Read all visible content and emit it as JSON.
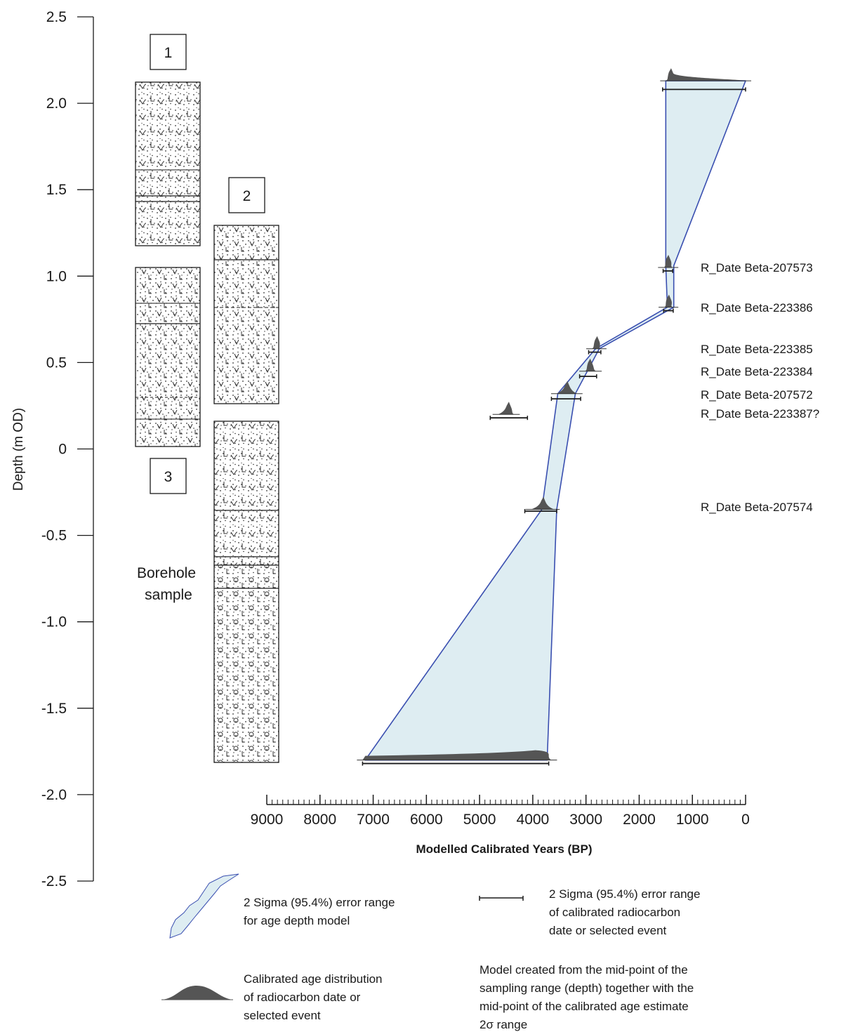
{
  "chart_data": {
    "type": "line",
    "ylabel": "Depth (m OD)",
    "xlabel": "Modelled Calibrated Years (BP)",
    "ylim": [
      -2.5,
      2.5
    ],
    "xlim": [
      9000,
      0
    ],
    "y_ticks": [
      "2.5",
      "2.0",
      "1.5",
      "1.0",
      "0.5",
      "0",
      "-0.5",
      "-1.0",
      "-1.5",
      "-2.0",
      "-2.5"
    ],
    "x_ticks": [
      "9000",
      "8000",
      "7000",
      "6000",
      "5000",
      "4000",
      "3000",
      "2000",
      "1000",
      "0"
    ],
    "dates": [
      {
        "label": "R_Date Beta-207573",
        "depth": 1.05,
        "age": 1450
      },
      {
        "label": "R_Date Beta-223386",
        "depth": 0.82,
        "age": 1430
      },
      {
        "label": "R_Date Beta-223385",
        "depth": 0.58,
        "age": 2800
      },
      {
        "label": "R_Date Beta-223384",
        "depth": 0.45,
        "age": 2900
      },
      {
        "label": "R_Date Beta-207572",
        "depth": 0.32,
        "age": 3350
      },
      {
        "label": "R_Date Beta-223387?",
        "depth": 0.2,
        "age": 4500
      },
      {
        "label": "R_Date Beta-207574",
        "depth": -0.35,
        "age": 3800
      }
    ],
    "model_envelope": {
      "left": [
        {
          "age": 1500,
          "depth": 2.13
        },
        {
          "age": 1500,
          "depth": 1.06
        },
        {
          "age": 1470,
          "depth": 0.82
        },
        {
          "age": 2820,
          "depth": 0.58
        },
        {
          "age": 3530,
          "depth": 0.32
        },
        {
          "age": 3830,
          "depth": -0.35
        },
        {
          "age": 7150,
          "depth": -1.8
        }
      ],
      "right": [
        {
          "age": 0,
          "depth": 2.13
        },
        {
          "age": 1350,
          "depth": 1.06
        },
        {
          "age": 1350,
          "depth": 0.82
        },
        {
          "age": 2750,
          "depth": 0.58
        },
        {
          "age": 3200,
          "depth": 0.32
        },
        {
          "age": 3550,
          "depth": -0.35
        },
        {
          "age": 3730,
          "depth": -1.8
        }
      ]
    },
    "distributions": [
      {
        "depth": 2.13,
        "from": 1500,
        "to": 0,
        "peak": 1400
      },
      {
        "depth": 1.05,
        "from": 1540,
        "to": 1370,
        "peak": 1450
      },
      {
        "depth": 0.82,
        "from": 1530,
        "to": 1370,
        "peak": 1440
      },
      {
        "depth": 0.58,
        "from": 2890,
        "to": 2720,
        "peak": 2790
      },
      {
        "depth": 0.45,
        "from": 3020,
        "to": 2810,
        "peak": 2920
      },
      {
        "depth": 0.32,
        "from": 3550,
        "to": 3170,
        "peak": 3350
      },
      {
        "depth": 0.2,
        "from": 4650,
        "to": 4350,
        "peak": 4450
      },
      {
        "depth": -0.35,
        "from": 4030,
        "to": 3600,
        "peak": 3800
      },
      {
        "depth": -1.8,
        "from": 7200,
        "to": 3650,
        "peak": 3950
      }
    ],
    "ranges": [
      {
        "depth": 2.08,
        "from": 1560,
        "to": 0
      },
      {
        "depth": 1.03,
        "from": 1550,
        "to": 1370
      },
      {
        "depth": 0.8,
        "from": 1540,
        "to": 1360
      },
      {
        "depth": 0.56,
        "from": 2950,
        "to": 2720
      },
      {
        "depth": 0.42,
        "from": 3120,
        "to": 2800
      },
      {
        "depth": 0.29,
        "from": 3650,
        "to": 3100
      },
      {
        "depth": 0.18,
        "from": 4800,
        "to": 4100
      },
      {
        "depth": -0.36,
        "from": 4150,
        "to": 3550
      },
      {
        "depth": -1.82,
        "from": 7200,
        "to": 3700
      }
    ]
  },
  "cores": {
    "labels": [
      "1",
      "2",
      "3"
    ],
    "borehole_label_line1": "Borehole",
    "borehole_label_line2": "sample"
  },
  "legend": {
    "envelope_line1": "2 Sigma (95.4%) error range",
    "envelope_line2": "for age depth model",
    "range_line1": "2 Sigma (95.4%) error range",
    "range_line2": "of calibrated radiocarbon",
    "range_line3": "date or selected event",
    "dist_line1": "Calibrated age distribution",
    "dist_line2": "of radiocarbon date or",
    "dist_line3": "selected event",
    "note_line1": "Model created from the mid-point of the",
    "note_line2": "sampling range (depth) together with the",
    "note_line3": "mid-point of the calibrated age estimate",
    "note_line4": "2σ range"
  },
  "colors": {
    "envelope_fill": "#deedf2",
    "envelope_stroke": "#3a4fb0",
    "distribution_fill": "#555555",
    "axis": "#1a1a1a"
  }
}
